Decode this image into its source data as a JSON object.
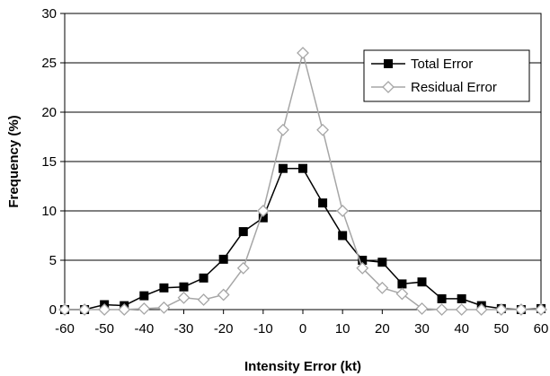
{
  "chart_data": {
    "type": "line",
    "title": "",
    "xlabel": "Intensity Error (kt)",
    "ylabel": "Frequency (%)",
    "xlim": [
      -60,
      60
    ],
    "ylim": [
      0,
      30
    ],
    "xticks": [
      -60,
      -50,
      -40,
      -30,
      -20,
      -10,
      0,
      10,
      20,
      30,
      40,
      50,
      60
    ],
    "yticks": [
      0,
      5,
      10,
      15,
      20,
      25,
      30
    ],
    "grid": "horizontal",
    "legend_position": "top-right",
    "x": [
      -60,
      -55,
      -50,
      -45,
      -40,
      -35,
      -30,
      -25,
      -20,
      -15,
      -10,
      -5,
      0,
      5,
      10,
      15,
      20,
      25,
      30,
      35,
      40,
      45,
      50,
      55,
      60
    ],
    "series": [
      {
        "name": "Total Error",
        "marker": "filled-square",
        "color": "#000000",
        "values": [
          0,
          0,
          0.5,
          0.4,
          1.4,
          2.2,
          2.3,
          3.2,
          5.1,
          7.9,
          9.3,
          14.3,
          14.3,
          10.8,
          7.5,
          5.0,
          4.8,
          2.6,
          2.8,
          1.1,
          1.1,
          0.4,
          0.1,
          0,
          0.1
        ]
      },
      {
        "name": "Residual Error",
        "marker": "open-diamond",
        "color": "#a6a6a6",
        "values": [
          0,
          0,
          0,
          0,
          0.1,
          0.2,
          1.2,
          1.0,
          1.5,
          4.2,
          10.0,
          18.2,
          26.0,
          18.2,
          10.0,
          4.2,
          2.2,
          1.6,
          0.1,
          0,
          0,
          0,
          0,
          0,
          0
        ]
      }
    ]
  }
}
